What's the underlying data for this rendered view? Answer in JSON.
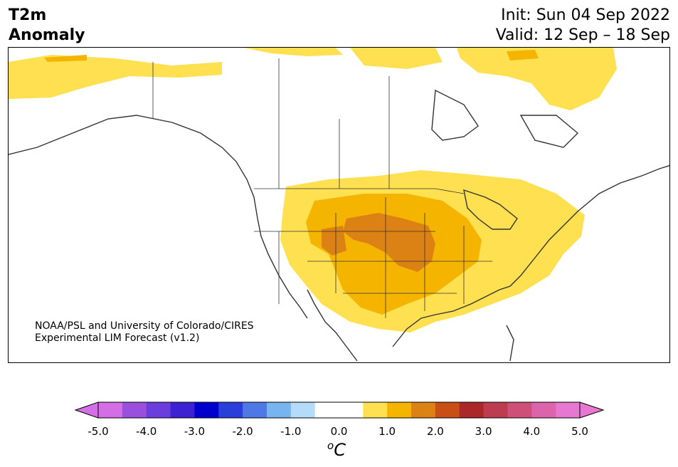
{
  "title": {
    "line1": "T2m",
    "line2": "Anomaly"
  },
  "dates": {
    "init": "Init: Sun 04 Sep 2022",
    "valid": "Valid: 12 Sep – 18 Sep"
  },
  "credit": {
    "line1": "NOAA/PSL and University of Colorado/CIRES",
    "line2": "Experimental LIM Forecast (v1.2)"
  },
  "colorbar": {
    "ticks": [
      "-5.0",
      "-4.0",
      "-3.0",
      "-2.0",
      "-1.0",
      "0.0",
      "1.0",
      "2.0",
      "3.0",
      "4.0",
      "5.0"
    ],
    "colors": [
      "#d46ee6",
      "#9a50dc",
      "#6a3edc",
      "#3c22d2",
      "#0000cd",
      "#2a3edc",
      "#4e78e6",
      "#78b4f0",
      "#b4dcfa",
      "#ffffff",
      "#ffffff",
      "#ffe050",
      "#f5b400",
      "#dc8214",
      "#c85014",
      "#aa2828",
      "#be3c50",
      "#cd5078",
      "#dc64aa",
      "#e678d2"
    ],
    "under_color": "#d46ee6",
    "over_color": "#e678d2",
    "unit_symbol": "o",
    "unit_letter": "C"
  },
  "map": {
    "region": "North America",
    "anomaly_max_region": "Central Plains / Southern Rockies"
  }
}
